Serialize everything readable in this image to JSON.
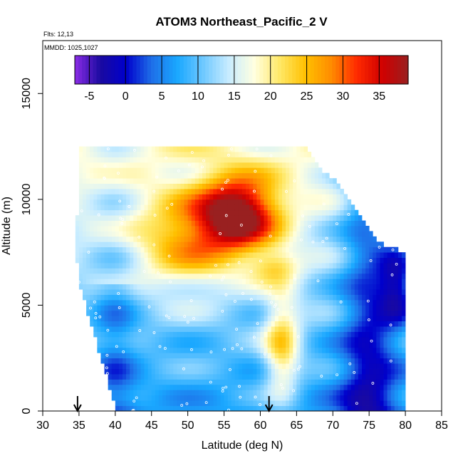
{
  "chart_data": {
    "type": "heatmap",
    "title": "ATOM3 Northeast_Pacific_2 V",
    "flights_label": "Flts: 12,13",
    "dates_label": "MMDD: 1025,1027",
    "xlabel": "Latitude (deg N)",
    "ylabel": "Altitude (m)",
    "xlim": [
      30,
      85
    ],
    "ylim": [
      0,
      17500
    ],
    "x_ticks": [
      30,
      35,
      40,
      45,
      50,
      55,
      60,
      65,
      70,
      75,
      80,
      85
    ],
    "y_ticks": [
      0,
      5000,
      10000,
      15000
    ],
    "colorbar": {
      "range": [
        -7,
        39
      ],
      "ticks": [
        -5,
        0,
        5,
        10,
        15,
        20,
        25,
        30,
        35
      ],
      "stops": [
        "#8b2ce6",
        "#1a0aa0",
        "#0000cc",
        "#1e6fe8",
        "#1aa8ff",
        "#6ec8ff",
        "#c8ecff",
        "#ffffe0",
        "#ffe866",
        "#ffc000",
        "#ff8c00",
        "#ff2a00",
        "#d00000",
        "#992020"
      ]
    },
    "arrows_lat": [
      34.8,
      61.2
    ],
    "field": {
      "lat_step": 0.5,
      "alt_step": 250,
      "lat_range": [
        34.5,
        80
      ],
      "alt_range": [
        0,
        12500
      ],
      "description_levels": [
        {
          "alt": 250,
          "v": 2
        },
        {
          "alt": 1500,
          "v": 6
        },
        {
          "alt": 3000,
          "v": 12
        },
        {
          "alt": 5000,
          "v": 15
        },
        {
          "alt": 7000,
          "v": 22
        },
        {
          "alt": 9000,
          "v": 30
        },
        {
          "alt": 11000,
          "v": 18
        },
        {
          "alt": 12250,
          "v": 10
        }
      ]
    }
  }
}
